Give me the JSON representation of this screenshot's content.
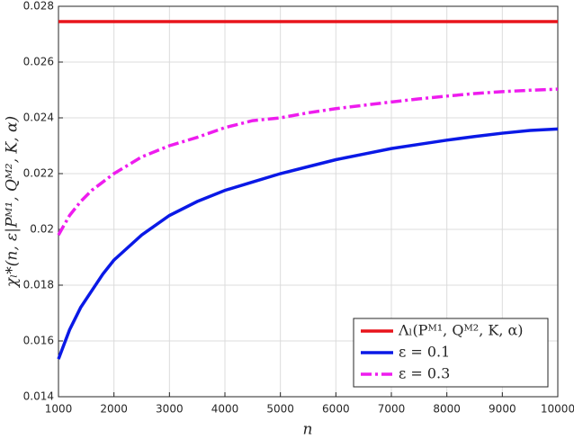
{
  "chart_data": {
    "type": "line",
    "xlabel": "n",
    "ylabel": "χₗ*(n, ε|Pᴹ¹, Qᴹ², K, α)",
    "x": [
      1000,
      1200,
      1400,
      1600,
      1800,
      2000,
      2500,
      3000,
      3500,
      4000,
      4500,
      5000,
      5500,
      6000,
      6500,
      7000,
      7500,
      8000,
      8500,
      9000,
      9500,
      10000
    ],
    "series": [
      {
        "name": "Λₗ(Pᴹ¹, Qᴹ², K, α)",
        "color": "#e8141b",
        "dash": "solid",
        "values": [
          0.02745,
          0.02745,
          0.02745,
          0.02745,
          0.02745,
          0.02745,
          0.02745,
          0.02745,
          0.02745,
          0.02745,
          0.02745,
          0.02745,
          0.02745,
          0.02745,
          0.02745,
          0.02745,
          0.02745,
          0.02745,
          0.02745,
          0.02745,
          0.02745,
          0.02745
        ]
      },
      {
        "name": "ε = 0.1",
        "color": "#0a19e6",
        "dash": "solid",
        "values": [
          0.01535,
          0.0164,
          0.0172,
          0.0178,
          0.0184,
          0.0189,
          0.0198,
          0.0205,
          0.021,
          0.0214,
          0.0217,
          0.022,
          0.02225,
          0.0225,
          0.0227,
          0.0229,
          0.02305,
          0.0232,
          0.02333,
          0.02345,
          0.02355,
          0.0236
        ]
      },
      {
        "name": "ε = 0.3",
        "color": "#ee1cee",
        "dash": "dashdot",
        "values": [
          0.0198,
          0.0205,
          0.021,
          0.0214,
          0.0217,
          0.022,
          0.0226,
          0.023,
          0.0233,
          0.02365,
          0.0239,
          0.024,
          0.02418,
          0.02433,
          0.02445,
          0.02457,
          0.02468,
          0.02478,
          0.02487,
          0.02494,
          0.02499,
          0.02503
        ]
      }
    ],
    "xlim": [
      1000,
      10000
    ],
    "xticks": [
      1000,
      2000,
      3000,
      4000,
      5000,
      6000,
      7000,
      8000,
      9000,
      10000
    ],
    "ylim": [
      0.014,
      0.028
    ],
    "yticks": [
      0.014,
      0.016,
      0.018,
      0.02,
      0.022,
      0.024,
      0.026,
      0.028
    ],
    "grid": true,
    "legend": "lower right"
  }
}
